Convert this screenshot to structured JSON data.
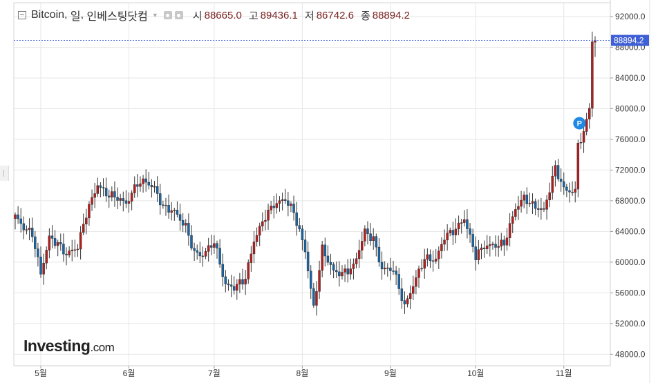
{
  "legend": {
    "symbol": "Bitcoin",
    "interval": "일",
    "source": "인베스팅닷컴",
    "open_label": "시",
    "open_value": "88665.0",
    "high_label": "고",
    "high_value": "89436.1",
    "low_label": "저",
    "low_value": "86742.6",
    "close_label": "종",
    "close_value": "88894.2"
  },
  "price_tag": "88894.2",
  "logo": {
    "brand": "Investing",
    "suffix": ".com"
  },
  "colors": {
    "up": "#b71c1c",
    "down": "#1565a8",
    "price_line": "#4f6bdc",
    "price_tag_bg": "#3f5fd6",
    "marker": "#1e88e5",
    "grid": "#e6e6e6"
  },
  "chart_data": {
    "type": "candlestick",
    "x_axis": {
      "tick_labels": [
        "5월",
        "6월",
        "7월",
        "8월",
        "9월",
        "10월",
        "11월"
      ]
    },
    "y_axis": {
      "tick_labels": [
        "48000.0",
        "52000.0",
        "56000.0",
        "60000.0",
        "64000.0",
        "68000.0",
        "72000.0",
        "76000.0",
        "80000.0",
        "84000.0",
        "88000.0",
        "92000.0"
      ],
      "range": [
        46500,
        93800
      ]
    },
    "last_price": 88894.2,
    "marker": {
      "label": "P",
      "position_near": "76000"
    },
    "anchors": [
      [
        "04-22",
        66000
      ],
      [
        "04-25",
        64500
      ],
      [
        "04-28",
        63700
      ],
      [
        "05-01",
        58500
      ],
      [
        "05-04",
        63200
      ],
      [
        "05-07",
        62400
      ],
      [
        "05-10",
        61000
      ],
      [
        "05-14",
        62000
      ],
      [
        "05-17",
        66300
      ],
      [
        "05-21",
        70100
      ],
      [
        "05-24",
        68900
      ],
      [
        "05-28",
        68400
      ],
      [
        "05-31",
        67600
      ],
      [
        "06-04",
        70300
      ],
      [
        "06-07",
        70500
      ],
      [
        "06-10",
        69600
      ],
      [
        "06-13",
        67200
      ],
      [
        "06-17",
        66600
      ],
      [
        "06-21",
        64600
      ],
      [
        "06-24",
        61200
      ],
      [
        "06-27",
        60900
      ],
      [
        "07-01",
        62700
      ],
      [
        "07-05",
        57000
      ],
      [
        "07-08",
        56700
      ],
      [
        "07-12",
        57900
      ],
      [
        "07-15",
        62800
      ],
      [
        "07-19",
        66000
      ],
      [
        "07-22",
        67500
      ],
      [
        "07-26",
        68200
      ],
      [
        "07-29",
        66500
      ],
      [
        "08-02",
        61500
      ],
      [
        "08-05",
        54000
      ],
      [
        "08-08",
        61700
      ],
      [
        "08-12",
        58800
      ],
      [
        "08-15",
        58500
      ],
      [
        "08-19",
        59400
      ],
      [
        "08-23",
        64000
      ],
      [
        "08-26",
        63000
      ],
      [
        "08-29",
        59100
      ],
      [
        "09-02",
        59100
      ],
      [
        "09-06",
        54200
      ],
      [
        "09-09",
        57000
      ],
      [
        "09-13",
        60500
      ],
      [
        "09-17",
        60300
      ],
      [
        "09-20",
        63300
      ],
      [
        "09-24",
        64300
      ],
      [
        "09-27",
        65700
      ],
      [
        "10-01",
        60800
      ],
      [
        "10-04",
        62100
      ],
      [
        "10-08",
        62200
      ],
      [
        "10-11",
        62400
      ],
      [
        "10-15",
        67000
      ],
      [
        "10-18",
        68400
      ],
      [
        "10-21",
        67400
      ],
      [
        "10-25",
        66700
      ],
      [
        "10-29",
        72300
      ],
      [
        "11-01",
        69500
      ],
      [
        "11-05",
        69100
      ],
      [
        "11-06",
        75600
      ],
      [
        "11-08",
        76600
      ],
      [
        "11-10",
        80400
      ],
      [
        "11-11",
        88700
      ],
      [
        "11-12",
        88894
      ]
    ],
    "labeled_ohlc": {
      "open": 88665.0,
      "high": 89436.1,
      "low": 86742.6,
      "close": 88894.2
    }
  }
}
